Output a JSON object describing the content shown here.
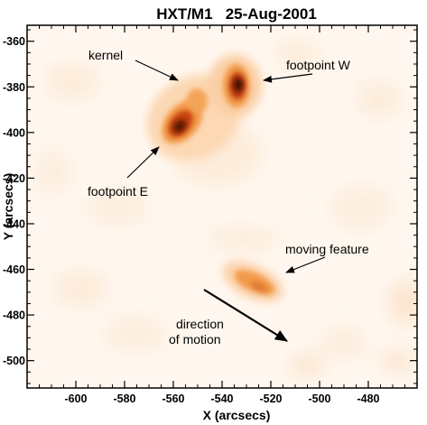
{
  "title": "HXT/M1   25-Aug-2001",
  "axes": {
    "xlabel": "X (arcsecs)",
    "ylabel": "Y (arcsecs)",
    "xlim": [
      -620,
      -460
    ],
    "ylim": [
      -512,
      -353
    ],
    "x_ticks": [
      -600,
      -580,
      -560,
      -540,
      -520,
      -500,
      -480
    ],
    "y_ticks": [
      -360,
      -380,
      -400,
      -420,
      -440,
      -460,
      -480,
      -500
    ]
  },
  "colors": {
    "background": "#fff7ef",
    "faint": "#fbe0c4",
    "mid": "#f39a4a",
    "strong": "#c6420f",
    "core": "#4a0a05",
    "axes": "#000000"
  },
  "annotations": [
    {
      "id": "kernel",
      "text": "kernel"
    },
    {
      "id": "footpoint-w",
      "text": "footpoint W"
    },
    {
      "id": "footpoint-e",
      "text": "footpoint E"
    },
    {
      "id": "moving-feature",
      "text": "moving feature"
    },
    {
      "id": "direction-1",
      "text": "direction"
    },
    {
      "id": "direction-2",
      "text": "of motion"
    }
  ]
}
